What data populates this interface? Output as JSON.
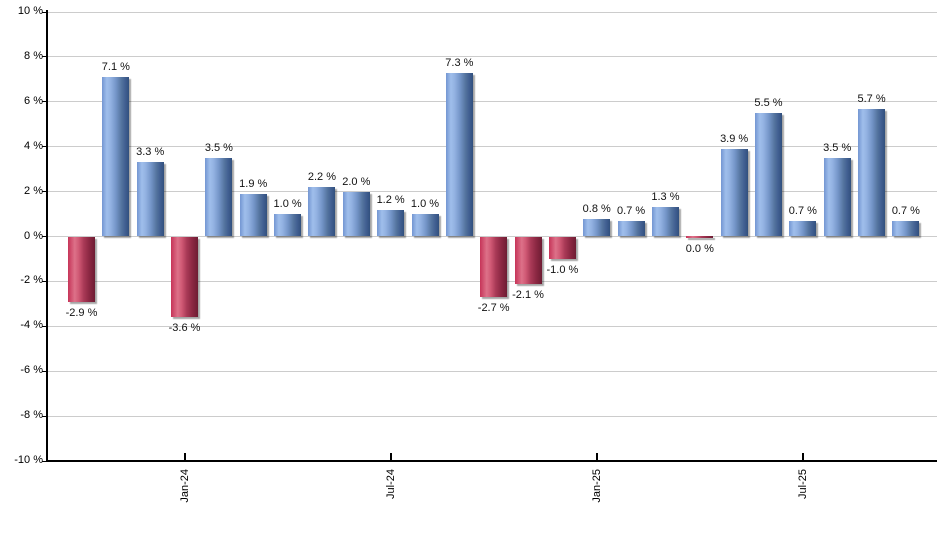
{
  "chart_data": {
    "type": "bar",
    "title": "",
    "xlabel": "",
    "ylabel": "",
    "unit": "%",
    "ylim": [
      -10,
      10
    ],
    "grid": "horizontal",
    "legend": "none",
    "colors": {
      "positive_bar": "#7396d2",
      "negative_bar": "#c63458",
      "gridline": "#cccccc",
      "axis": "#000000",
      "label_text": "#111111"
    },
    "y_axis": {
      "ticks": [
        {
          "value": 10,
          "label": "10 %"
        },
        {
          "value": 8,
          "label": "8 %"
        },
        {
          "value": 6,
          "label": "6 %"
        },
        {
          "value": 4,
          "label": "4 %"
        },
        {
          "value": 2,
          "label": "2 %"
        },
        {
          "value": 0,
          "label": "0 %"
        },
        {
          "value": -2,
          "label": "-2 %"
        },
        {
          "value": -4,
          "label": "-4 %"
        },
        {
          "value": -6,
          "label": "-6 %"
        },
        {
          "value": -8,
          "label": "-8 %"
        },
        {
          "value": -10,
          "label": "-10 %"
        }
      ]
    },
    "x_axis": {
      "ticks": [
        {
          "label": "Jan-24",
          "bar_index": 3
        },
        {
          "label": "Jul-24",
          "bar_index": 9
        },
        {
          "label": "Jan-25",
          "bar_index": 15
        },
        {
          "label": "Jul-25",
          "bar_index": 21
        }
      ]
    },
    "bars": [
      {
        "value": -2.9,
        "label": "-2.9 %",
        "color": "red"
      },
      {
        "value": 7.1,
        "label": "7.1 %",
        "color": "blue"
      },
      {
        "value": 3.3,
        "label": "3.3 %",
        "color": "blue"
      },
      {
        "value": -3.6,
        "label": "-3.6 %",
        "color": "red"
      },
      {
        "value": 3.5,
        "label": "3.5 %",
        "color": "blue"
      },
      {
        "value": 1.9,
        "label": "1.9 %",
        "color": "blue"
      },
      {
        "value": 1.0,
        "label": "1.0 %",
        "color": "blue"
      },
      {
        "value": 2.2,
        "label": "2.2 %",
        "color": "blue"
      },
      {
        "value": 2.0,
        "label": "2.0 %",
        "color": "blue"
      },
      {
        "value": 1.2,
        "label": "1.2 %",
        "color": "blue"
      },
      {
        "value": 1.0,
        "label": "1.0 %",
        "color": "blue"
      },
      {
        "value": 7.3,
        "label": "7.3 %",
        "color": "blue"
      },
      {
        "value": -2.7,
        "label": "-2.7 %",
        "color": "red"
      },
      {
        "value": -2.1,
        "label": "-2.1 %",
        "color": "red"
      },
      {
        "value": -1.0,
        "label": "-1.0 %",
        "color": "red"
      },
      {
        "value": 0.8,
        "label": "0.8 %",
        "color": "blue"
      },
      {
        "value": 0.7,
        "label": "0.7 %",
        "color": "blue"
      },
      {
        "value": 1.3,
        "label": "1.3 %",
        "color": "blue"
      },
      {
        "value": 0.0,
        "label": "0.0 %",
        "color": "red"
      },
      {
        "value": 3.9,
        "label": "3.9 %",
        "color": "blue"
      },
      {
        "value": 5.5,
        "label": "5.5 %",
        "color": "blue"
      },
      {
        "value": 0.7,
        "label": "0.7 %",
        "color": "blue"
      },
      {
        "value": 3.5,
        "label": "3.5 %",
        "color": "blue"
      },
      {
        "value": 5.7,
        "label": "5.7 %",
        "color": "blue"
      },
      {
        "value": 0.7,
        "label": "0.7 %",
        "color": "blue"
      }
    ]
  }
}
